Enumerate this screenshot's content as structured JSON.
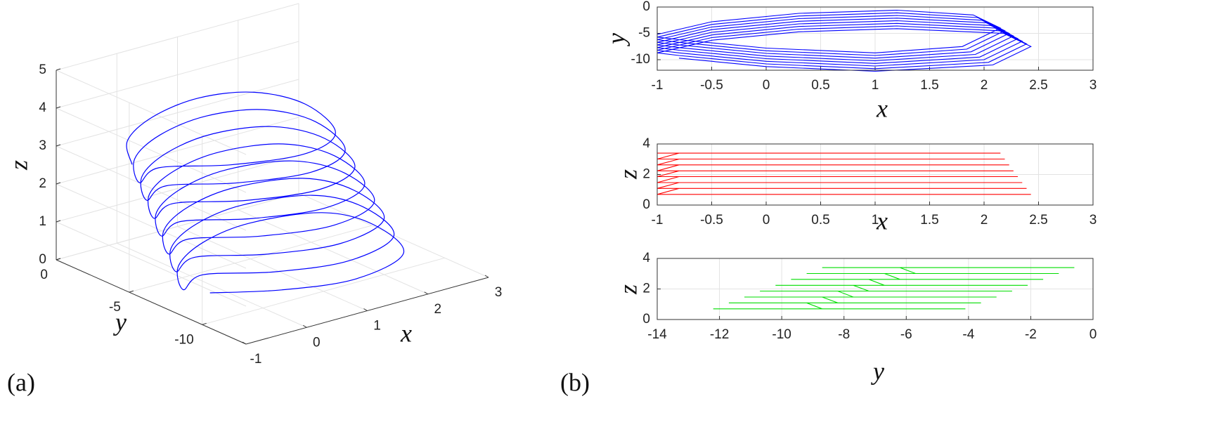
{
  "chart_data": [
    {
      "type": "line3d",
      "panel": "(a)",
      "xlabel": "x",
      "ylabel": "y",
      "zlabel": "z",
      "xlim": [
        -1,
        3
      ],
      "ylim": [
        -13,
        0
      ],
      "zlim": [
        0,
        5
      ],
      "xticks": [
        -1,
        0,
        1,
        2,
        3
      ],
      "yticks": [
        -10,
        -5,
        0
      ],
      "zticks": [
        0,
        1,
        2,
        3,
        4,
        5
      ],
      "grid": true,
      "series": [
        {
          "color": "#0000ff",
          "x": [
            -1,
            -0.5,
            0.3,
            1.2,
            1.9,
            2.15,
            1.8,
            1,
            0,
            -0.8,
            -1,
            -0.5,
            0.3,
            1.2,
            1.94,
            2.19,
            1.84,
            1,
            0,
            -0.8,
            -1,
            -0.5,
            0.3,
            1.2,
            1.98,
            2.23,
            1.88,
            1,
            0,
            -0.8,
            -1,
            -0.5,
            0.3,
            1.2,
            2.02,
            2.27,
            1.92,
            1,
            0,
            -0.8,
            -1,
            -0.5,
            0.3,
            1.2,
            2.06,
            2.31,
            1.96,
            1,
            0,
            -0.8,
            -1,
            -0.5,
            0.3,
            1.2,
            2.1,
            2.35,
            2,
            1,
            0,
            -0.8,
            -1,
            -0.5,
            0.3,
            1.2,
            2.14,
            2.39,
            2.04,
            1,
            0,
            -0.8,
            -1,
            -0.5,
            0.3,
            1.2,
            2.18,
            2.43,
            2.08,
            1,
            0,
            -0.8
          ],
          "y": [
            -5.2,
            -2.8,
            -1.2,
            -0.6,
            -1.5,
            -4,
            -7.5,
            -8.7,
            -7.8,
            -6.2,
            -5.7,
            -3.3,
            -1.7,
            -1.1,
            -2,
            -4.5,
            -8,
            -9.2,
            -8.3,
            -6.7,
            -6.2,
            -3.8,
            -2.2,
            -1.6,
            -2.5,
            -5,
            -8.5,
            -9.7,
            -8.8,
            -7.2,
            -6.7,
            -4.3,
            -2.7,
            -2.1,
            -3,
            -5.5,
            -9,
            -10.2,
            -9.3,
            -7.7,
            -7.2,
            -4.8,
            -3.2,
            -2.6,
            -3.5,
            -6,
            -9.5,
            -10.7,
            -9.8,
            -8.2,
            -7.7,
            -5.3,
            -3.7,
            -3.1,
            -4,
            -6.5,
            -10,
            -11.2,
            -10.3,
            -8.7,
            -8.2,
            -5.8,
            -4.2,
            -3.6,
            -4.5,
            -7,
            -10.5,
            -11.7,
            -10.8,
            -9.2,
            -8.7,
            -6.3,
            -4.7,
            -4.1,
            -5,
            -7.5,
            -11,
            -12.2,
            -11.3,
            -9.7
          ],
          "z": [
            3.4,
            3.4,
            3.4,
            3.4,
            3.4,
            3.4,
            3.4,
            3.4,
            3.4,
            3.4,
            3.01,
            3.01,
            3.01,
            3.01,
            3.01,
            3.01,
            3.01,
            3.01,
            3.01,
            3.01,
            2.63,
            2.63,
            2.63,
            2.63,
            2.63,
            2.63,
            2.63,
            2.63,
            2.63,
            2.63,
            2.24,
            2.24,
            2.24,
            2.24,
            2.24,
            2.24,
            2.24,
            2.24,
            2.24,
            2.24,
            1.86,
            1.86,
            1.86,
            1.86,
            1.86,
            1.86,
            1.86,
            1.86,
            1.86,
            1.86,
            1.47,
            1.47,
            1.47,
            1.47,
            1.47,
            1.47,
            1.47,
            1.47,
            1.47,
            1.47,
            1.09,
            1.09,
            1.09,
            1.09,
            1.09,
            1.09,
            1.09,
            1.09,
            1.09,
            1.09,
            0.7,
            0.7,
            0.7,
            0.7,
            0.7,
            0.7,
            0.7,
            0.7,
            0.7,
            0.7
          ]
        }
      ]
    },
    {
      "type": "line",
      "panel": "(b)",
      "xlabel": "x",
      "ylabel": "y",
      "xlim": [
        -1,
        3
      ],
      "ylim": [
        -12,
        0
      ],
      "xticks": [
        -1,
        -0.5,
        0,
        0.5,
        1,
        1.5,
        2,
        2.5,
        3
      ],
      "yticks": [
        -10,
        -5,
        0
      ],
      "grid": true,
      "series": [
        {
          "color": "#0000ff",
          "x": [
            -1,
            -0.5,
            0.3,
            1.2,
            1.9,
            2.15,
            1.8,
            1,
            0,
            -0.8,
            -1,
            -0.5,
            0.3,
            1.2,
            1.94,
            2.19,
            1.84,
            1,
            0,
            -0.8,
            -1,
            -0.5,
            0.3,
            1.2,
            1.98,
            2.23,
            1.88,
            1,
            0,
            -0.8,
            -1,
            -0.5,
            0.3,
            1.2,
            2.02,
            2.27,
            1.92,
            1,
            0,
            -0.8,
            -1,
            -0.5,
            0.3,
            1.2,
            2.06,
            2.31,
            1.96,
            1,
            0,
            -0.8,
            -1,
            -0.5,
            0.3,
            1.2,
            2.1,
            2.35,
            2,
            1,
            0,
            -0.8,
            -1,
            -0.5,
            0.3,
            1.2,
            2.14,
            2.39,
            2.04,
            1,
            0,
            -0.8,
            -1,
            -0.5,
            0.3,
            1.2,
            2.18,
            2.43,
            2.08,
            1,
            0,
            -0.8
          ],
          "values": [
            -5.2,
            -2.8,
            -1.2,
            -0.6,
            -1.5,
            -4,
            -7.5,
            -8.7,
            -7.8,
            -6.2,
            -5.7,
            -3.3,
            -1.7,
            -1.1,
            -2,
            -4.5,
            -8,
            -9.2,
            -8.3,
            -6.7,
            -6.2,
            -3.8,
            -2.2,
            -1.6,
            -2.5,
            -5,
            -8.5,
            -9.7,
            -8.8,
            -7.2,
            -6.7,
            -4.3,
            -2.7,
            -2.1,
            -3,
            -5.5,
            -9,
            -10.2,
            -9.3,
            -7.7,
            -7.2,
            -4.8,
            -3.2,
            -2.6,
            -3.5,
            -6,
            -9.5,
            -10.7,
            -9.8,
            -8.2,
            -7.7,
            -5.3,
            -3.7,
            -3.1,
            -4,
            -6.5,
            -10,
            -11.2,
            -10.3,
            -8.7,
            -8.2,
            -5.8,
            -4.2,
            -3.6,
            -4.5,
            -7,
            -10.5,
            -11.7,
            -10.8,
            -9.2,
            -8.7,
            -6.3,
            -4.7,
            -4.1,
            -5,
            -7.5,
            -11,
            -12.2,
            -11.3,
            -9.7
          ]
        }
      ]
    },
    {
      "type": "line",
      "xlabel": "x",
      "ylabel": "z",
      "xlim": [
        -1,
        3
      ],
      "ylim": [
        0,
        4
      ],
      "xticks": [
        -1,
        -0.5,
        0,
        0.5,
        1,
        1.5,
        2,
        2.5,
        3
      ],
      "yticks": [
        0,
        2,
        4
      ],
      "grid": true,
      "series": [
        {
          "color": "#ff0000",
          "x": [
            -1,
            -0.5,
            0.3,
            1.2,
            1.9,
            2.15,
            1.8,
            1,
            0,
            -0.8,
            -1,
            -0.5,
            0.3,
            1.2,
            1.94,
            2.19,
            1.84,
            1,
            0,
            -0.8,
            -1,
            -0.5,
            0.3,
            1.2,
            1.98,
            2.23,
            1.88,
            1,
            0,
            -0.8,
            -1,
            -0.5,
            0.3,
            1.2,
            2.02,
            2.27,
            1.92,
            1,
            0,
            -0.8,
            -1,
            -0.5,
            0.3,
            1.2,
            2.06,
            2.31,
            1.96,
            1,
            0,
            -0.8,
            -1,
            -0.5,
            0.3,
            1.2,
            2.1,
            2.35,
            2,
            1,
            0,
            -0.8,
            -1,
            -0.5,
            0.3,
            1.2,
            2.14,
            2.39,
            2.04,
            1,
            0,
            -0.8,
            -1,
            -0.5,
            0.3,
            1.2,
            2.18,
            2.43,
            2.08,
            1,
            0,
            -0.8
          ],
          "values": [
            3.4,
            3.4,
            3.4,
            3.4,
            3.4,
            3.4,
            3.4,
            3.4,
            3.4,
            3.4,
            3.01,
            3.01,
            3.01,
            3.01,
            3.01,
            3.01,
            3.01,
            3.01,
            3.01,
            3.01,
            2.63,
            2.63,
            2.63,
            2.63,
            2.63,
            2.63,
            2.63,
            2.63,
            2.63,
            2.63,
            2.24,
            2.24,
            2.24,
            2.24,
            2.24,
            2.24,
            2.24,
            2.24,
            2.24,
            2.24,
            1.86,
            1.86,
            1.86,
            1.86,
            1.86,
            1.86,
            1.86,
            1.86,
            1.86,
            1.86,
            1.47,
            1.47,
            1.47,
            1.47,
            1.47,
            1.47,
            1.47,
            1.47,
            1.47,
            1.47,
            1.09,
            1.09,
            1.09,
            1.09,
            1.09,
            1.09,
            1.09,
            1.09,
            1.09,
            1.09,
            0.7,
            0.7,
            0.7,
            0.7,
            0.7,
            0.7,
            0.7,
            0.7,
            0.7,
            0.7
          ]
        }
      ]
    },
    {
      "type": "line",
      "xlabel": "y",
      "ylabel": "z",
      "xlim": [
        -14,
        0
      ],
      "ylim": [
        0,
        4
      ],
      "xticks": [
        -14,
        -12,
        -10,
        -8,
        -6,
        -4,
        -2,
        0
      ],
      "yticks": [
        0,
        2,
        4
      ],
      "grid": true,
      "series": [
        {
          "color": "#00dd00",
          "x": [
            -5.2,
            -2.8,
            -1.2,
            -0.6,
            -1.5,
            -4,
            -7.5,
            -8.7,
            -7.8,
            -6.2,
            -5.7,
            -3.3,
            -1.7,
            -1.1,
            -2,
            -4.5,
            -8,
            -9.2,
            -8.3,
            -6.7,
            -6.2,
            -3.8,
            -2.2,
            -1.6,
            -2.5,
            -5,
            -8.5,
            -9.7,
            -8.8,
            -7.2,
            -6.7,
            -4.3,
            -2.7,
            -2.1,
            -3,
            -5.5,
            -9,
            -10.2,
            -9.3,
            -7.7,
            -7.2,
            -4.8,
            -3.2,
            -2.6,
            -3.5,
            -6,
            -9.5,
            -10.7,
            -9.8,
            -8.2,
            -7.7,
            -5.3,
            -3.7,
            -3.1,
            -4,
            -6.5,
            -10,
            -11.2,
            -10.3,
            -8.7,
            -8.2,
            -5.8,
            -4.2,
            -3.6,
            -4.5,
            -7,
            -10.5,
            -11.7,
            -10.8,
            -9.2,
            -8.7,
            -6.3,
            -4.7,
            -4.1,
            -5,
            -7.5,
            -11,
            -12.2,
            -11.3,
            -9.7
          ],
          "values": [
            3.4,
            3.4,
            3.4,
            3.4,
            3.4,
            3.4,
            3.4,
            3.4,
            3.4,
            3.4,
            3.01,
            3.01,
            3.01,
            3.01,
            3.01,
            3.01,
            3.01,
            3.01,
            3.01,
            3.01,
            2.63,
            2.63,
            2.63,
            2.63,
            2.63,
            2.63,
            2.63,
            2.63,
            2.63,
            2.63,
            2.24,
            2.24,
            2.24,
            2.24,
            2.24,
            2.24,
            2.24,
            2.24,
            2.24,
            2.24,
            1.86,
            1.86,
            1.86,
            1.86,
            1.86,
            1.86,
            1.86,
            1.86,
            1.86,
            1.86,
            1.47,
            1.47,
            1.47,
            1.47,
            1.47,
            1.47,
            1.47,
            1.47,
            1.47,
            1.47,
            1.09,
            1.09,
            1.09,
            1.09,
            1.09,
            1.09,
            1.09,
            1.09,
            1.09,
            1.09,
            0.7,
            0.7,
            0.7,
            0.7,
            0.7,
            0.7,
            0.7,
            0.7,
            0.7,
            0.7
          ]
        }
      ]
    }
  ]
}
